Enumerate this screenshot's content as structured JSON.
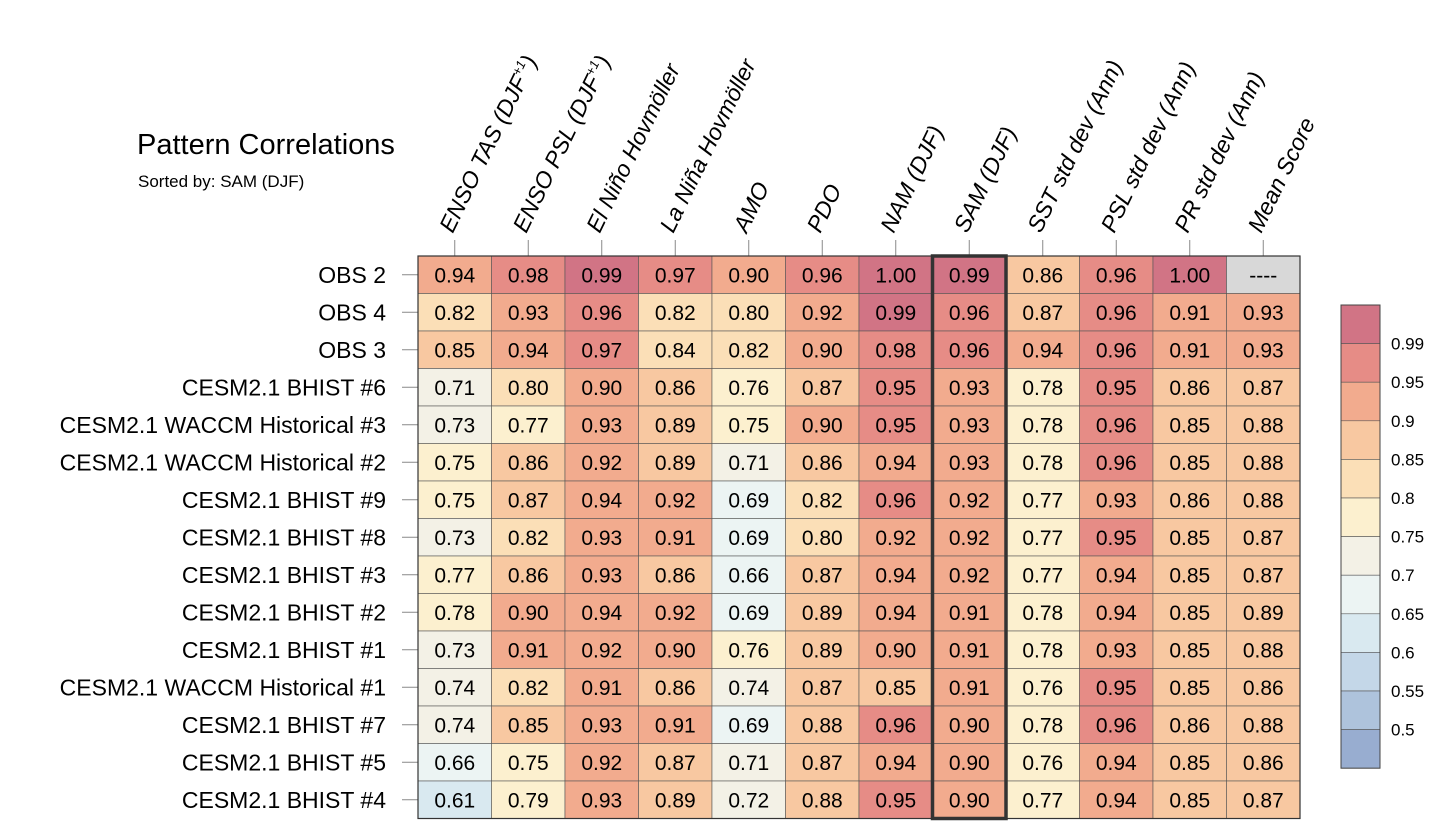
{
  "chart_data": {
    "type": "heatmap",
    "title": "Pattern Correlations",
    "subtitle": "Sorted by: SAM (DJF)",
    "columns": [
      {
        "label": "ENSO TAS (DJF",
        "sup": "+1",
        "tail": ")"
      },
      {
        "label": "ENSO PSL (DJF",
        "sup": "+1",
        "tail": ")"
      },
      {
        "label": "El Niño Hovmöller",
        "sup": "",
        "tail": ""
      },
      {
        "label": "La Niña Hovmöller",
        "sup": "",
        "tail": ""
      },
      {
        "label": "AMO",
        "sup": "",
        "tail": ""
      },
      {
        "label": "PDO",
        "sup": "",
        "tail": ""
      },
      {
        "label": "NAM (DJF)",
        "sup": "",
        "tail": ""
      },
      {
        "label": "SAM (DJF)",
        "sup": "",
        "tail": ""
      },
      {
        "label": "SST std dev (Ann)",
        "sup": "",
        "tail": ""
      },
      {
        "label": "PSL std dev (Ann)",
        "sup": "",
        "tail": ""
      },
      {
        "label": "PR std dev (Ann)",
        "sup": "",
        "tail": ""
      },
      {
        "label": "Mean Score",
        "sup": "",
        "tail": ""
      }
    ],
    "rows": [
      "OBS 2",
      "OBS 4",
      "OBS 3",
      "CESM2.1 BHIST #6",
      "CESM2.1 WACCM Historical #3",
      "CESM2.1 WACCM Historical #2",
      "CESM2.1 BHIST #9",
      "CESM2.1 BHIST #8",
      "CESM2.1 BHIST #3",
      "CESM2.1 BHIST #2",
      "CESM2.1 BHIST #1",
      "CESM2.1 WACCM Historical #1",
      "CESM2.1 BHIST #7",
      "CESM2.1 BHIST #5",
      "CESM2.1 BHIST #4"
    ],
    "values": [
      [
        "0.94",
        "0.98",
        "0.99",
        "0.97",
        "0.90",
        "0.96",
        "1.00",
        "0.99",
        "0.86",
        "0.96",
        "1.00",
        "----"
      ],
      [
        "0.82",
        "0.93",
        "0.96",
        "0.82",
        "0.80",
        "0.92",
        "0.99",
        "0.96",
        "0.87",
        "0.96",
        "0.91",
        "0.93"
      ],
      [
        "0.85",
        "0.94",
        "0.97",
        "0.84",
        "0.82",
        "0.90",
        "0.98",
        "0.96",
        "0.94",
        "0.96",
        "0.91",
        "0.93"
      ],
      [
        "0.71",
        "0.80",
        "0.90",
        "0.86",
        "0.76",
        "0.87",
        "0.95",
        "0.93",
        "0.78",
        "0.95",
        "0.86",
        "0.87"
      ],
      [
        "0.73",
        "0.77",
        "0.93",
        "0.89",
        "0.75",
        "0.90",
        "0.95",
        "0.93",
        "0.78",
        "0.96",
        "0.85",
        "0.88"
      ],
      [
        "0.75",
        "0.86",
        "0.92",
        "0.89",
        "0.71",
        "0.86",
        "0.94",
        "0.93",
        "0.78",
        "0.96",
        "0.85",
        "0.88"
      ],
      [
        "0.75",
        "0.87",
        "0.94",
        "0.92",
        "0.69",
        "0.82",
        "0.96",
        "0.92",
        "0.77",
        "0.93",
        "0.86",
        "0.88"
      ],
      [
        "0.73",
        "0.82",
        "0.93",
        "0.91",
        "0.69",
        "0.80",
        "0.92",
        "0.92",
        "0.77",
        "0.95",
        "0.85",
        "0.87"
      ],
      [
        "0.77",
        "0.86",
        "0.93",
        "0.86",
        "0.66",
        "0.87",
        "0.94",
        "0.92",
        "0.77",
        "0.94",
        "0.85",
        "0.87"
      ],
      [
        "0.78",
        "0.90",
        "0.94",
        "0.92",
        "0.69",
        "0.89",
        "0.94",
        "0.91",
        "0.78",
        "0.94",
        "0.85",
        "0.89"
      ],
      [
        "0.73",
        "0.91",
        "0.92",
        "0.90",
        "0.76",
        "0.89",
        "0.90",
        "0.91",
        "0.78",
        "0.93",
        "0.85",
        "0.88"
      ],
      [
        "0.74",
        "0.82",
        "0.91",
        "0.86",
        "0.74",
        "0.87",
        "0.85",
        "0.91",
        "0.76",
        "0.95",
        "0.85",
        "0.86"
      ],
      [
        "0.74",
        "0.85",
        "0.93",
        "0.91",
        "0.69",
        "0.88",
        "0.96",
        "0.90",
        "0.78",
        "0.96",
        "0.86",
        "0.88"
      ],
      [
        "0.66",
        "0.75",
        "0.92",
        "0.87",
        "0.71",
        "0.87",
        "0.94",
        "0.90",
        "0.76",
        "0.94",
        "0.85",
        "0.86"
      ],
      [
        "0.61",
        "0.79",
        "0.93",
        "0.89",
        "0.72",
        "0.88",
        "0.95",
        "0.90",
        "0.77",
        "0.94",
        "0.85",
        "0.87"
      ]
    ],
    "highlighted_column": "SAM (DJF)",
    "missing_text": "----",
    "colorbar": {
      "labels": [
        "0.99",
        "0.95",
        "0.9",
        "0.85",
        "0.8",
        "0.75",
        "0.7",
        "0.65",
        "0.6",
        "0.55",
        "0.5"
      ],
      "thresholds": [
        0.5,
        0.55,
        0.6,
        0.65,
        0.7,
        0.75,
        0.8,
        0.85,
        0.9,
        0.95,
        0.99
      ],
      "colors_low_to_high": [
        "#98add0",
        "#aec3dc",
        "#c4d7e8",
        "#d9e9f0",
        "#ecf4f3",
        "#f3f1e6",
        "#fcf0cf",
        "#fbdfb7",
        "#f8c8a1",
        "#f2ab8e",
        "#e68c86",
        "#d17485"
      ]
    },
    "missing_color": "#d8d8d8"
  }
}
